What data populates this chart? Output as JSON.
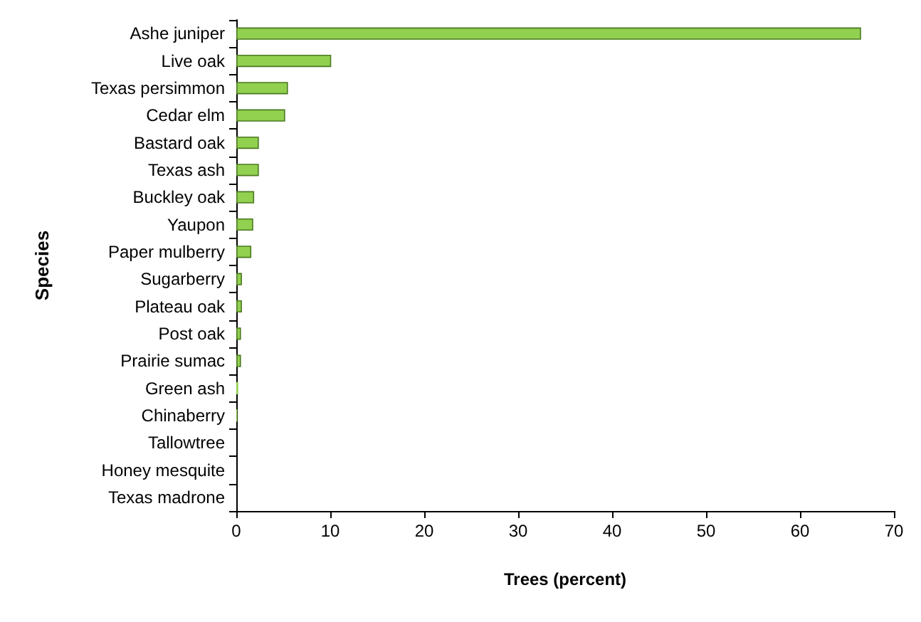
{
  "chart_data": {
    "type": "bar",
    "orientation": "horizontal",
    "xlabel": "Trees (percent)",
    "ylabel": "Species",
    "categories": [
      "Ashe juniper",
      "Live oak",
      "Texas persimmon",
      "Cedar elm",
      "Bastard oak",
      "Texas ash",
      "Buckley oak",
      "Yaupon",
      "Paper mulberry",
      "Sugarberry",
      "Plateau oak",
      "Post oak",
      "Prairie sumac",
      "Green ash",
      "Chinaberry",
      "Tallowtree",
      "Honey mesquite",
      "Texas madrone"
    ],
    "values": [
      66.5,
      10.1,
      5.5,
      5.2,
      2.4,
      2.4,
      1.9,
      1.8,
      1.6,
      0.6,
      0.6,
      0.5,
      0.5,
      0.2,
      0.1,
      0,
      0,
      0
    ],
    "color": "#92d050",
    "xlim": [
      0,
      70
    ],
    "xticks": [
      0,
      10,
      20,
      30,
      40,
      50,
      60,
      70
    ],
    "grid": false
  }
}
